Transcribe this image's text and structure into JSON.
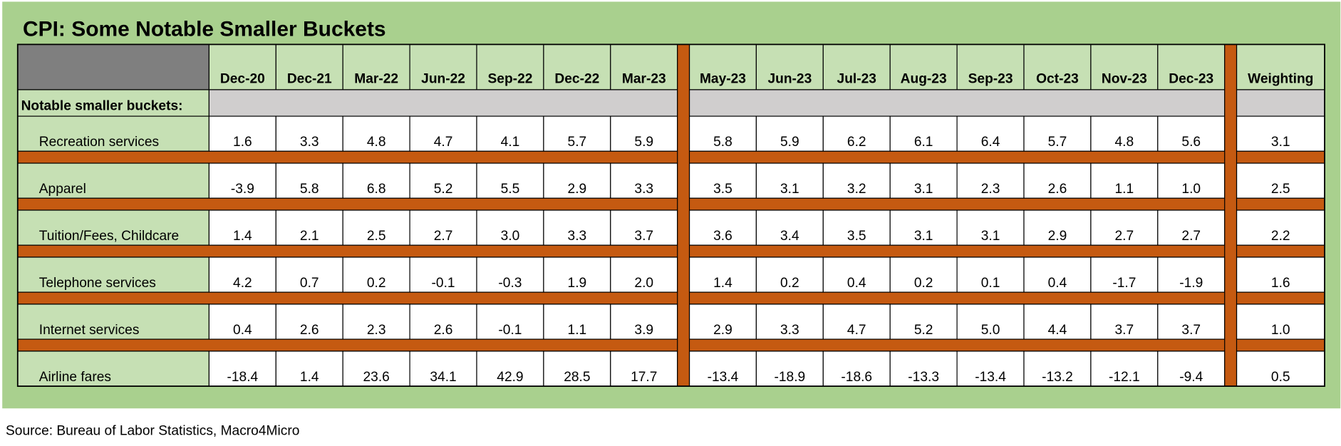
{
  "title": "CPI: Some Notable Smaller Buckets",
  "columns": [
    "Dec-20",
    "Dec-21",
    "Mar-22",
    "Jun-22",
    "Sep-22",
    "Dec-22",
    "Mar-23",
    "May-23",
    "Jun-23",
    "Jul-23",
    "Aug-23",
    "Sep-23",
    "Oct-23",
    "Nov-23",
    "Dec-23"
  ],
  "weighting_header": "Weighting",
  "section_label": "Notable smaller buckets:",
  "rows": [
    {
      "label": "Recreation services",
      "values": [
        "1.6",
        "3.3",
        "4.8",
        "4.7",
        "4.1",
        "5.7",
        "5.9",
        "5.8",
        "5.9",
        "6.2",
        "6.1",
        "6.4",
        "5.7",
        "4.8",
        "5.6"
      ],
      "weighting": "3.1"
    },
    {
      "label": "Apparel",
      "values": [
        "-3.9",
        "5.8",
        "6.8",
        "5.2",
        "5.5",
        "2.9",
        "3.3",
        "3.5",
        "3.1",
        "3.2",
        "3.1",
        "2.3",
        "2.6",
        "1.1",
        "1.0"
      ],
      "weighting": "2.5"
    },
    {
      "label": "Tuition/Fees, Childcare",
      "values": [
        "1.4",
        "2.1",
        "2.5",
        "2.7",
        "3.0",
        "3.3",
        "3.7",
        "3.6",
        "3.4",
        "3.5",
        "3.1",
        "3.1",
        "2.9",
        "2.7",
        "2.7"
      ],
      "weighting": "2.2"
    },
    {
      "label": "Telephone services",
      "values": [
        "4.2",
        "0.7",
        "0.2",
        "-0.1",
        "-0.3",
        "1.9",
        "2.0",
        "1.4",
        "0.2",
        "0.4",
        "0.2",
        "0.1",
        "0.4",
        "-1.7",
        "-1.9"
      ],
      "weighting": "1.6"
    },
    {
      "label": "Internet services",
      "values": [
        "0.4",
        "2.6",
        "2.3",
        "2.6",
        "-0.1",
        "1.1",
        "3.9",
        "2.9",
        "3.3",
        "4.7",
        "5.2",
        "5.0",
        "4.4",
        "3.7",
        "3.7"
      ],
      "weighting": "1.0"
    },
    {
      "label": "Airline fares",
      "values": [
        "-18.4",
        "1.4",
        "23.6",
        "34.1",
        "42.9",
        "28.5",
        "17.7",
        "-13.4",
        "-18.9",
        "-18.6",
        "-13.3",
        "-13.4",
        "-13.2",
        "-12.1",
        "-9.4"
      ],
      "weighting": "0.5"
    }
  ],
  "source": "Source: Bureau of Labor Statistics, Macro4Micro"
}
